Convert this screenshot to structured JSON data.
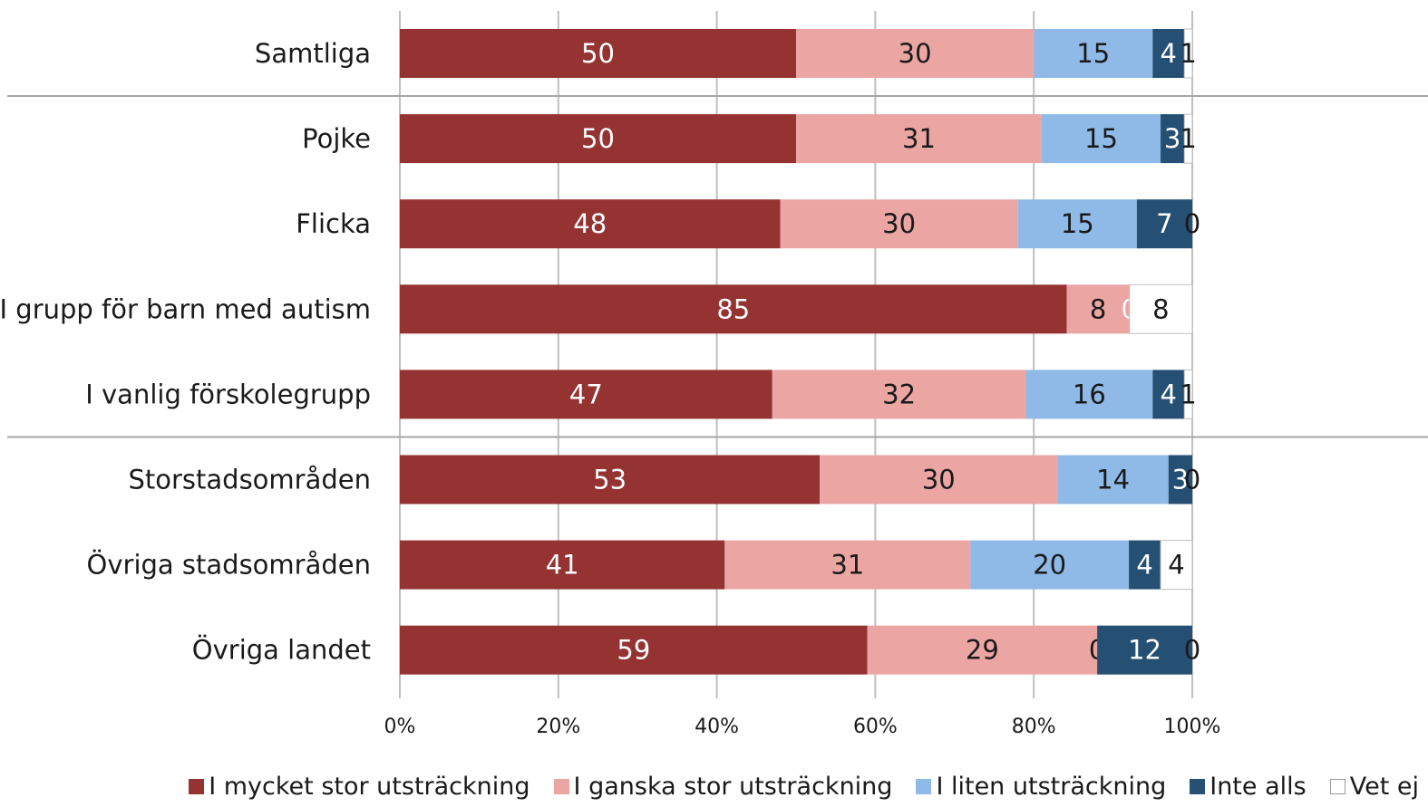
{
  "chart_data": {
    "type": "bar",
    "orientation": "horizontal",
    "stacked": "percent",
    "categories": [
      "Samtliga",
      "Pojke",
      "Flicka",
      "I grupp för barn med autism",
      "I vanlig förskolegrupp",
      "Storstadsområden",
      "Övriga stadsområden",
      "Övriga landet"
    ],
    "series": [
      {
        "name": "I mycket stor utsträckning",
        "color": "#953333",
        "label_color": "#ffffff",
        "values": [
          50,
          50,
          48,
          85,
          47,
          53,
          41,
          59
        ]
      },
      {
        "name": "I ganska stor utsträckning",
        "color": "#eba6a4",
        "label_color": "#1a1a1a",
        "values": [
          30,
          31,
          30,
          8,
          32,
          30,
          31,
          29
        ]
      },
      {
        "name": "I liten utsträckning",
        "color": "#8fb9e6",
        "label_color": "#1a1a1a",
        "values": [
          15,
          15,
          15,
          0,
          16,
          14,
          20,
          0
        ]
      },
      {
        "name": "Inte alls",
        "color": "#254f73",
        "label_color": "#ffffff",
        "values": [
          4,
          3,
          7,
          0,
          4,
          3,
          4,
          12
        ]
      },
      {
        "name": "Vet ej",
        "color": "#ffffff",
        "label_color": "#1a1a1a",
        "values": [
          1,
          1,
          0,
          8,
          1,
          0,
          4,
          0
        ]
      }
    ],
    "x_ticks": [
      "0%",
      "20%",
      "40%",
      "60%",
      "80%",
      "100%"
    ],
    "xlim": [
      0,
      100
    ],
    "separators_after": [
      "Samtliga",
      "I vanlig förskolegrupp"
    ],
    "grid": "vertical",
    "legend_position": "bottom",
    "title": "",
    "xlabel": "",
    "ylabel": ""
  }
}
